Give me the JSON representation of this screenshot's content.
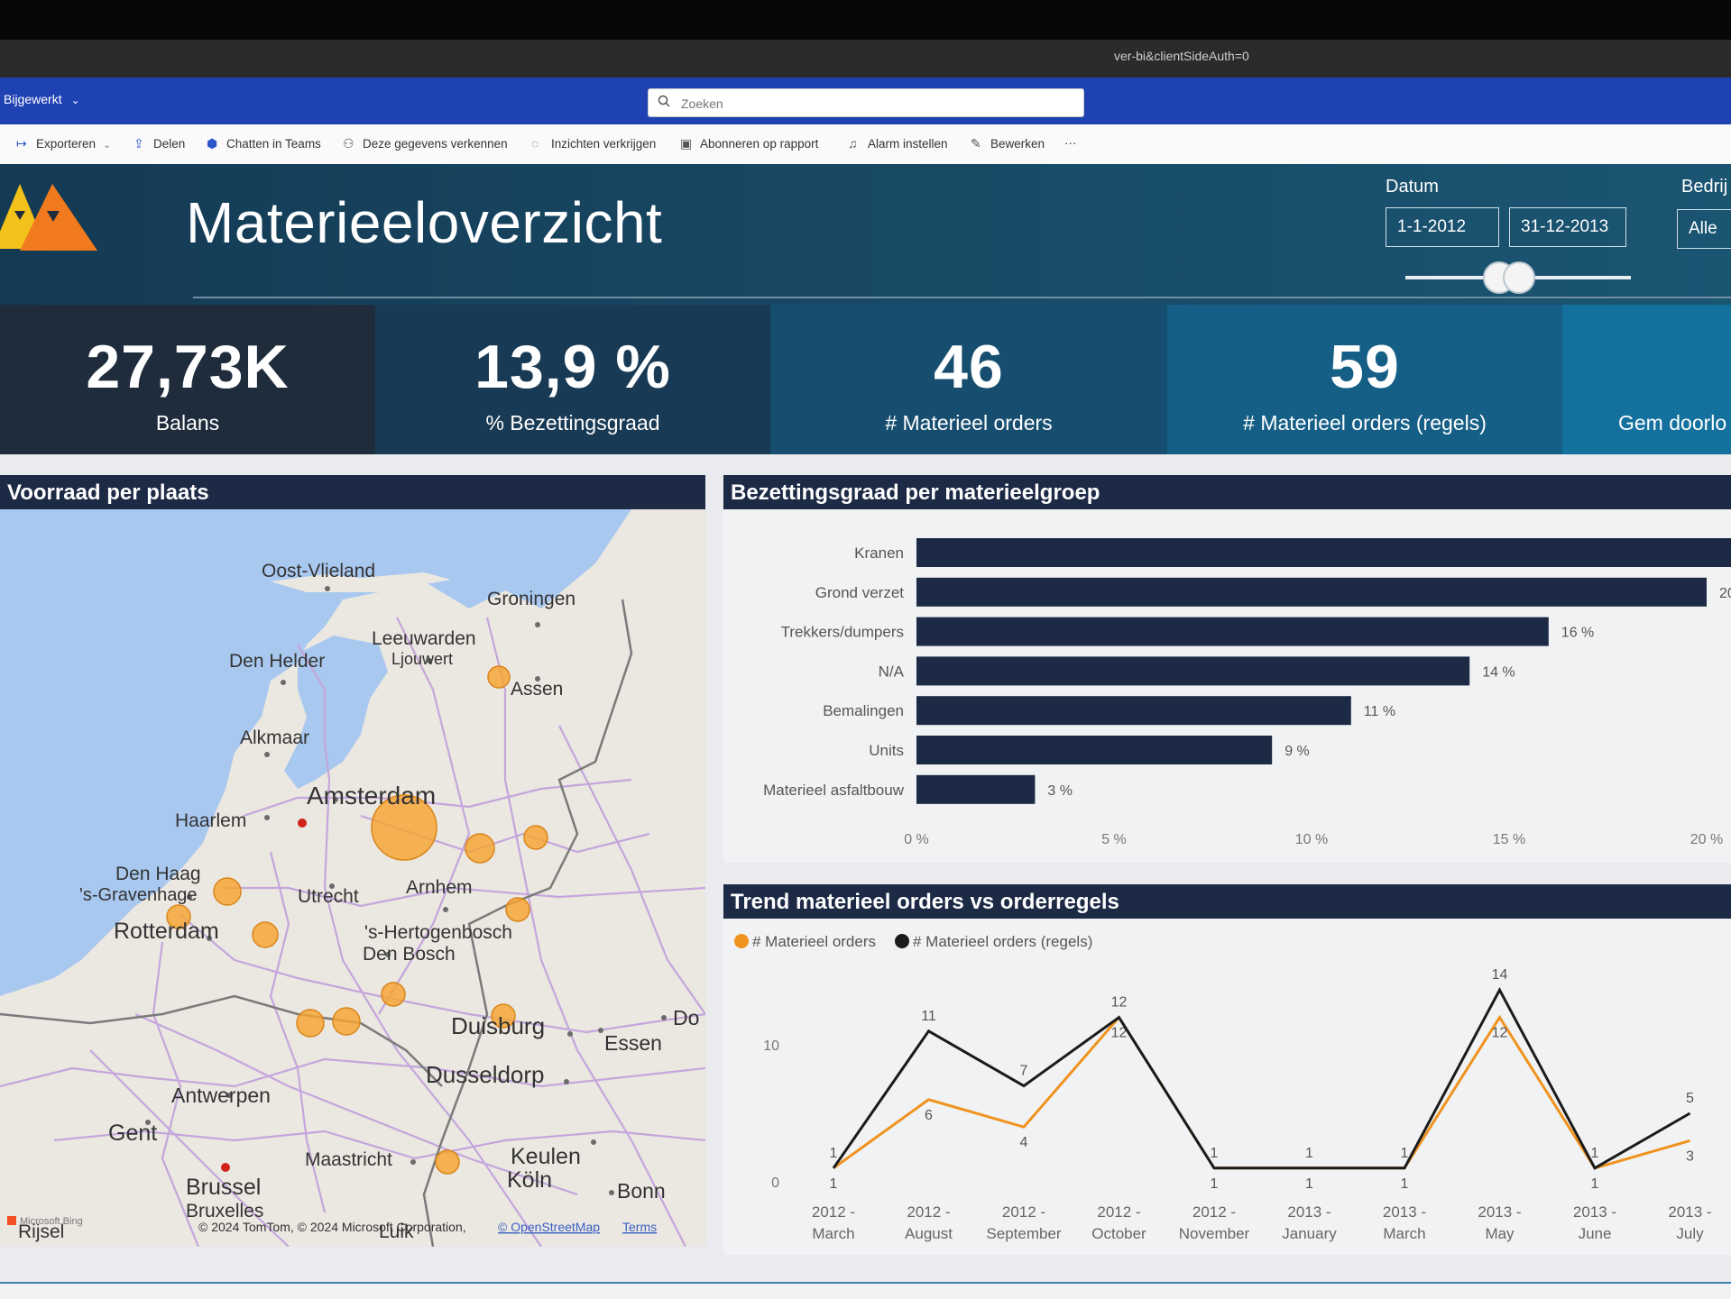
{
  "browser": {
    "url_fragment": "ver-bi&clientSideAuth=0"
  },
  "appbar": {
    "workspace_label": "Bijgewerkt",
    "search_placeholder": "Zoeken"
  },
  "toolbar": {
    "items": [
      "Exporteren",
      "Delen",
      "Chatten in Teams",
      "Deze gegevens verkennen",
      "Inzichten verkrijgen",
      "Abonneren op rapport",
      "Alarm instellen",
      "Bewerken",
      "···"
    ]
  },
  "header": {
    "title": "Materieeloverzicht",
    "date_label": "Datum",
    "date_from": "1-1-2012",
    "date_to": "31-12-2013",
    "company_label": "Bedrij",
    "company_value": "Alle"
  },
  "kpis": [
    {
      "value": "27,73K",
      "label": "Balans",
      "bg": "#1f2c3c"
    },
    {
      "value": "13,9 %",
      "label": "% Bezettingsgraad",
      "bg": "#193a55"
    },
    {
      "value": "46",
      "label": "# Materieel orders",
      "bg": "#174e70"
    },
    {
      "value": "59",
      "label": "# Materieel orders (regels)",
      "bg": "#155f86"
    },
    {
      "value": "",
      "label": "Gem doorlo",
      "bg": "#14709d"
    }
  ],
  "map": {
    "title": "Voorraad per plaats",
    "cities": [
      "Oost-Vlieland",
      "Groningen",
      "Leeuwarden",
      "Ljouwert",
      "Den Helder",
      "Assen",
      "Alkmaar",
      "Amsterdam",
      "Haarlem",
      "Den Haag",
      "'s-Gravenhage",
      "Utrecht",
      "Arnhem",
      "Rotterdam",
      "'s-Hertogenbosch",
      "Den Bosch",
      "Duisburg",
      "Essen",
      "Dusseldorp",
      "Antwerpen",
      "Gent",
      "Maastricht",
      "Keulen",
      "Köln",
      "Bonn",
      "Brussel",
      "Bruxelles",
      "Rijsel",
      "Luik",
      "Do"
    ],
    "attribution": "© 2024 TomTom, © 2024 Microsoft Corporation,",
    "osm_link": "© OpenStreetMap",
    "terms_link": "Terms",
    "bing_label": "Microsoft Bing"
  },
  "chart_data": [
    {
      "type": "bar",
      "orientation": "horizontal",
      "title": "Bezettingsgraad per materieelgroep",
      "categories": [
        "Kranen",
        "Grond verzet",
        "Trekkers/dumpers",
        "N/A",
        "Bemalingen",
        "Units",
        "Materieel asfaltbouw"
      ],
      "values": [
        21,
        20,
        16,
        14,
        11,
        9,
        3
      ],
      "value_labels": [
        "",
        "20",
        "16 %",
        "14 %",
        "11 %",
        "9 %",
        "3 %"
      ],
      "xlim": [
        0,
        20
      ],
      "x_ticks": [
        "0 %",
        "5 %",
        "10 %",
        "15 %",
        "20 %"
      ],
      "color": "#1c2a46"
    },
    {
      "type": "line",
      "title": "Trend materieel orders vs orderregels",
      "categories": [
        "2012 - March",
        "2012 - August",
        "2012 - September",
        "2012 - October",
        "2012 - November",
        "2013 - January",
        "2013 - March",
        "2013 - May",
        "2013 - June",
        "2013 - July"
      ],
      "series": [
        {
          "name": "# Materieel orders",
          "color": "#f0931e",
          "values": [
            1,
            6,
            4,
            12,
            1,
            1,
            1,
            12,
            1,
            3
          ]
        },
        {
          "name": "# Materieel orders (regels)",
          "color": "#1b1b1b",
          "values": [
            1,
            11,
            7,
            12,
            1,
            1,
            1,
            14,
            1,
            5
          ]
        }
      ],
      "ylim": [
        0,
        15
      ],
      "y_ticks": [
        "0",
        "10"
      ]
    }
  ]
}
